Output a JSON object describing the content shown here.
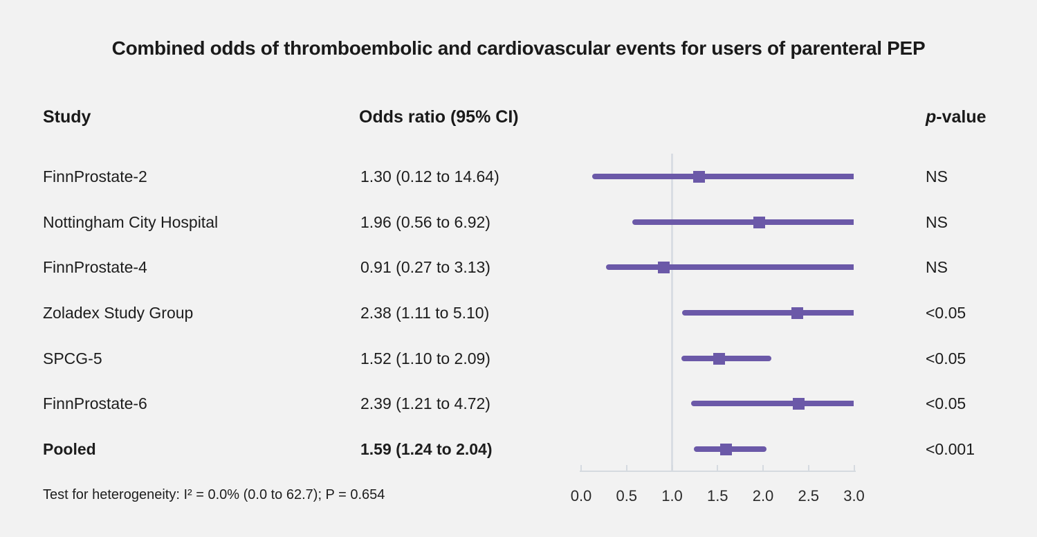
{
  "chart_data": {
    "type": "forest",
    "title": "Combined odds of thromboembolic and cardiovascular events for users of parenteral PEP",
    "columns": {
      "study": "Study",
      "odds_ratio": "Odds ratio (95% CI)",
      "p_value_italic": "p",
      "p_value_rest": "-value"
    },
    "rows": [
      {
        "study": "FinnProstate-2",
        "or_label": "1.30 (0.12 to 14.64)",
        "or": 1.3,
        "ci_low": 0.12,
        "ci_high": 14.64,
        "p": "NS",
        "pooled": false
      },
      {
        "study": "Nottingham City Hospital",
        "or_label": "1.96 (0.56 to 6.92)",
        "or": 1.96,
        "ci_low": 0.56,
        "ci_high": 6.92,
        "p": "NS",
        "pooled": false
      },
      {
        "study": "FinnProstate-4",
        "or_label": "0.91 (0.27 to 3.13)",
        "or": 0.91,
        "ci_low": 0.27,
        "ci_high": 3.13,
        "p": "NS",
        "pooled": false
      },
      {
        "study": "Zoladex Study Group",
        "or_label": "2.38 (1.11 to 5.10)",
        "or": 2.38,
        "ci_low": 1.11,
        "ci_high": 5.1,
        "p": "<0.05",
        "pooled": false
      },
      {
        "study": "SPCG-5",
        "or_label": "1.52 (1.10 to 2.09)",
        "or": 1.52,
        "ci_low": 1.1,
        "ci_high": 2.09,
        "p": "<0.05",
        "pooled": false
      },
      {
        "study": "FinnProstate-6",
        "or_label": "2.39 (1.21 to 4.72)",
        "or": 2.39,
        "ci_low": 1.21,
        "ci_high": 4.72,
        "p": "<0.05",
        "pooled": false
      },
      {
        "study": "Pooled",
        "or_label": "1.59 (1.24 to 2.04)",
        "or": 1.59,
        "ci_low": 1.24,
        "ci_high": 2.04,
        "p": "<0.001",
        "pooled": true
      }
    ],
    "axis": {
      "min": 0.0,
      "max": 3.0,
      "tick_labels": [
        "0.0",
        "0.5",
        "1.0",
        "1.5",
        "2.0",
        "2.5",
        "3.0"
      ],
      "reference_line": 1.0
    },
    "footnote": "Test for heterogeneity: I² = 0.0% (0.0 to 62.7); P = 0.654",
    "colors": {
      "marker": "#6b59a8",
      "reference_line": "#d9dde3",
      "axis": "#d5dae0",
      "background": "#f2f2f2",
      "text": "#1a1a1a"
    }
  }
}
